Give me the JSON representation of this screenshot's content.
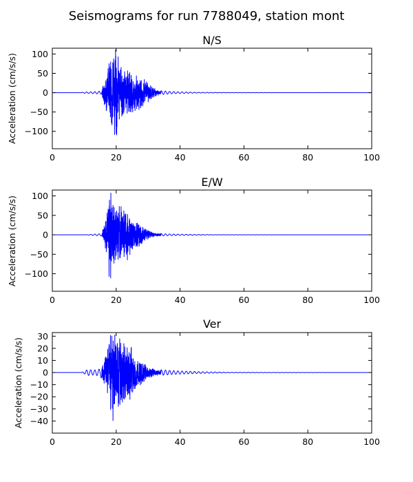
{
  "figure": {
    "title": "Seismograms for run 7788049, station mont"
  },
  "chart_data": [
    {
      "type": "line",
      "title": "N/S",
      "xlabel": "",
      "ylabel": "Acceleration (cm/s/s)",
      "xlim": [
        0,
        100
      ],
      "ylim": [
        -145,
        115
      ],
      "xticks": [
        0,
        20,
        40,
        60,
        80,
        100
      ],
      "yticks": [
        -100,
        -50,
        0,
        50,
        100
      ],
      "grid": false,
      "line_color": "#0000ff",
      "envelope": [
        {
          "x": 0,
          "amp": 0
        },
        {
          "x": 9,
          "amp": 0
        },
        {
          "x": 10,
          "amp": 1.5
        },
        {
          "x": 13,
          "amp": 2.5
        },
        {
          "x": 15.5,
          "amp": 4
        },
        {
          "x": 16,
          "amp": 30
        },
        {
          "x": 17,
          "amp": 55
        },
        {
          "x": 18,
          "amp": 85
        },
        {
          "x": 19,
          "amp": 105
        },
        {
          "x": 20,
          "amp": 128
        },
        {
          "x": 21,
          "amp": 78
        },
        {
          "x": 22,
          "amp": 70
        },
        {
          "x": 24,
          "amp": 60
        },
        {
          "x": 26,
          "amp": 50
        },
        {
          "x": 28,
          "amp": 40
        },
        {
          "x": 30,
          "amp": 30
        },
        {
          "x": 32,
          "amp": 12
        },
        {
          "x": 34,
          "amp": 5
        },
        {
          "x": 38,
          "amp": 2.5
        },
        {
          "x": 45,
          "amp": 1
        },
        {
          "x": 55,
          "amp": 0.3
        },
        {
          "x": 100,
          "amp": 0
        }
      ]
    },
    {
      "type": "line",
      "title": "E/W",
      "xlabel": "",
      "ylabel": "Acceleration (cm/s/s)",
      "xlim": [
        0,
        100
      ],
      "ylim": [
        -145,
        115
      ],
      "xticks": [
        0,
        20,
        40,
        60,
        80,
        100
      ],
      "yticks": [
        -100,
        -50,
        0,
        50,
        100
      ],
      "grid": false,
      "line_color": "#0000ff",
      "envelope": [
        {
          "x": 0,
          "amp": 0
        },
        {
          "x": 10,
          "amp": 0
        },
        {
          "x": 12,
          "amp": 1
        },
        {
          "x": 15.5,
          "amp": 3
        },
        {
          "x": 16,
          "amp": 25
        },
        {
          "x": 17,
          "amp": 60
        },
        {
          "x": 18,
          "amp": 135
        },
        {
          "x": 19,
          "amp": 95
        },
        {
          "x": 20,
          "amp": 85
        },
        {
          "x": 21,
          "amp": 95
        },
        {
          "x": 22,
          "amp": 80
        },
        {
          "x": 24,
          "amp": 60
        },
        {
          "x": 26,
          "amp": 40
        },
        {
          "x": 28,
          "amp": 25
        },
        {
          "x": 30,
          "amp": 12
        },
        {
          "x": 32,
          "amp": 5
        },
        {
          "x": 35,
          "amp": 2.5
        },
        {
          "x": 40,
          "amp": 1.5
        },
        {
          "x": 50,
          "amp": 0.3
        },
        {
          "x": 100,
          "amp": 0
        }
      ]
    },
    {
      "type": "line",
      "title": "Ver",
      "xlabel": "",
      "ylabel": "Acceleration (cm/s/s)",
      "xlim": [
        0,
        100
      ],
      "ylim": [
        -50,
        33
      ],
      "xticks": [
        0,
        20,
        40,
        60,
        80,
        100
      ],
      "yticks": [
        -40,
        -30,
        -20,
        -10,
        0,
        10,
        20,
        30
      ],
      "grid": false,
      "line_color": "#0000ff",
      "envelope": [
        {
          "x": 0,
          "amp": 0
        },
        {
          "x": 9,
          "amp": 0
        },
        {
          "x": 10,
          "amp": 1
        },
        {
          "x": 11,
          "amp": 2.5
        },
        {
          "x": 13,
          "amp": 2
        },
        {
          "x": 15,
          "amp": 3
        },
        {
          "x": 16,
          "amp": 8
        },
        {
          "x": 17,
          "amp": 18
        },
        {
          "x": 18,
          "amp": 30
        },
        {
          "x": 19,
          "amp": 45
        },
        {
          "x": 20,
          "amp": 30
        },
        {
          "x": 21,
          "amp": 30
        },
        {
          "x": 22,
          "amp": 28
        },
        {
          "x": 24,
          "amp": 25
        },
        {
          "x": 26,
          "amp": 15
        },
        {
          "x": 28,
          "amp": 10
        },
        {
          "x": 30,
          "amp": 5
        },
        {
          "x": 33,
          "amp": 2.5
        },
        {
          "x": 38,
          "amp": 1.5
        },
        {
          "x": 45,
          "amp": 0.8
        },
        {
          "x": 55,
          "amp": 0.2
        },
        {
          "x": 100,
          "amp": 0
        }
      ]
    }
  ]
}
